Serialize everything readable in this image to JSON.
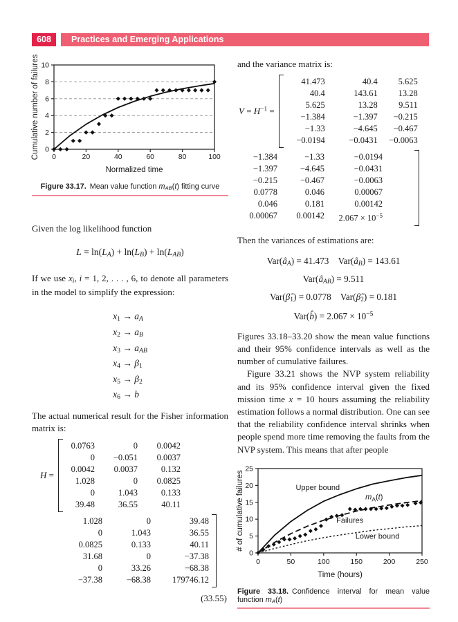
{
  "page": {
    "number": "608",
    "header_title": "Practices and Emerging Applications"
  },
  "colors": {
    "header_box": "#e32249",
    "header_bar": "#ee5f72",
    "caption_rule": "#f08795"
  },
  "left_column": {
    "para_log_likelihood": "Given the log likelihood function",
    "eq_likelihood": "$L$ = ln($L$_{$A$}) + ln($L$_{$B$}) + ln($L$_{$AB$})",
    "para_if_we_use": "If we use $x$_{$i$}, $i$ = 1, 2, . . . , 6, to denote all parameters in the model to simplify the expression:",
    "mappings": [
      "$x$_{1} → $a$_{$A$}",
      "$x$_{2} → $a$_{$B$}",
      "$x$_{3} → $a$_{$AB$}",
      "$x$_{4} → $β$_{1}",
      "$x$_{5} → $β$_{2}",
      "$x$_{6} → $b$"
    ],
    "para_fisher": "The actual numerical result for the Fisher information matrix is:",
    "h_matrix": {
      "label": "$H$ =",
      "block1": [
        [
          "0.0763",
          "0",
          "0.0042"
        ],
        [
          "0",
          "−0.051",
          "0.0037"
        ],
        [
          "0.0042",
          "0.0037",
          "0.132"
        ],
        [
          "1.028",
          "0",
          "0.0825"
        ],
        [
          "0",
          "1.043",
          "0.133"
        ],
        [
          "39.48",
          "36.55",
          "40.11"
        ]
      ],
      "block2": [
        [
          "1.028",
          "0",
          "39.48"
        ],
        [
          "0",
          "1.043",
          "36.55"
        ],
        [
          "0.0825",
          "0.133",
          "40.11"
        ],
        [
          "31.68",
          "0",
          "−37.38"
        ],
        [
          "0",
          "33.26",
          "−68.38"
        ],
        [
          "−37.38",
          "−68.38",
          "179746.12"
        ]
      ],
      "equation_number": "(33.55)"
    }
  },
  "right_column": {
    "para_variance": "and the variance matrix is:",
    "v_matrix": {
      "label": "$V$ = $H$^{−1} =",
      "block1": [
        [
          "41.473",
          "40.4",
          "5.625"
        ],
        [
          "40.4",
          "143.61",
          "13.28"
        ],
        [
          "5.625",
          "13.28",
          "9.511"
        ],
        [
          "−1.384",
          "−1.397",
          "−0.215"
        ],
        [
          "−1.33",
          "−4.645",
          "−0.467"
        ],
        [
          "−0.0194",
          "−0.0431",
          "−0.0063"
        ]
      ],
      "block2": [
        [
          "−1.384",
          "−1.33",
          "−0.0194"
        ],
        [
          "−1.397",
          "−4.645",
          "−0.0431"
        ],
        [
          "−0.215",
          "−0.467",
          "−0.0063"
        ],
        [
          "0.0778",
          "0.046",
          "0.00067"
        ],
        [
          "0.046",
          "0.181",
          "0.00142"
        ],
        [
          "0.00067",
          "0.00142",
          "2.067 × 10^{−5}"
        ]
      ]
    },
    "para_then": "Then the variances of estimations are:",
    "variance_lines": [
      "Var($â$_{$A$}) = 41.473 Var($â$_{$B$}) = 143.61",
      "Var($â$_{$AB$}) = 9.511",
      "Var($β̂$_{1}) = 0.0778 Var($β̂$_{2}) = 0.181",
      "Var($b̂$) = 2.067 × 10^{−5}"
    ],
    "para_figures": "Figures 33.18–33.20 show the mean value functions and their 95% confidence intervals as well as the number of cumulative failures.",
    "para_figure_3321": "Figure 33.21 shows the NVP system reliability and its 95% confidence interval given the fixed mission time $x$ = 10 hours assuming the reliability estimation follows a normal distribution. One can see that the reliability confidence interval shrinks when people spend more time removing the faults from the NVP system. This means that after people"
  },
  "figure_33_17": {
    "caption_label": "Figure 33.17.",
    "caption_text": "Mean value function $m$_{$AB$}($t$) fitting curve"
  },
  "figure_33_18": {
    "caption_label": "Figure 33.18.",
    "caption_text": "Confidence interval for mean value function $m$_{$A$}($t$)"
  },
  "chart_data": [
    {
      "id": "figure-33-17",
      "type": "scatter",
      "title": "",
      "xlabel": "Normalized time",
      "ylabel": "Cumulative number of failures",
      "xlim": [
        0,
        100
      ],
      "ylim": [
        0,
        10
      ],
      "xticks": [
        0,
        20,
        40,
        60,
        80,
        100
      ],
      "yticks": [
        0,
        2,
        4,
        6,
        8,
        10
      ],
      "grid_y": [
        2,
        4,
        6,
        8
      ],
      "legend": "none",
      "series": [
        {
          "name": "observed cumulative failures",
          "type": "scatter",
          "marker": "diamond",
          "points": [
            [
              0,
              0
            ],
            [
              4,
              0
            ],
            [
              8,
              0
            ],
            [
              12,
              1
            ],
            [
              16,
              1
            ],
            [
              20,
              2
            ],
            [
              24,
              2
            ],
            [
              28,
              3
            ],
            [
              32,
              4
            ],
            [
              36,
              4
            ],
            [
              40,
              6
            ],
            [
              44,
              6
            ],
            [
              48,
              6
            ],
            [
              52,
              6
            ],
            [
              56,
              6
            ],
            [
              60,
              6
            ],
            [
              64,
              7
            ],
            [
              68,
              7
            ],
            [
              72,
              7
            ],
            [
              76,
              7
            ],
            [
              80,
              7
            ],
            [
              84,
              7
            ],
            [
              88,
              7
            ],
            [
              92,
              7
            ],
            [
              96,
              7
            ],
            [
              100,
              8
            ]
          ]
        },
        {
          "name": "fitted mean value function mAB(t)",
          "type": "line",
          "style": "solid",
          "points": [
            [
              0,
              0
            ],
            [
              10,
              1.63
            ],
            [
              20,
              2.97
            ],
            [
              30,
              4.06
            ],
            [
              40,
              4.96
            ],
            [
              50,
              5.69
            ],
            [
              60,
              6.29
            ],
            [
              70,
              6.78
            ],
            [
              80,
              7.18
            ],
            [
              90,
              7.51
            ],
            [
              100,
              7.8
            ]
          ]
        }
      ]
    },
    {
      "id": "figure-33-18",
      "type": "line",
      "title": "",
      "xlabel": "Time (hours)",
      "ylabel": "# of cumulative failures",
      "xlim": [
        0,
        250
      ],
      "ylim": [
        0,
        25
      ],
      "xticks": [
        0,
        50,
        100,
        150,
        200,
        250
      ],
      "yticks": [
        0,
        5,
        10,
        15,
        20,
        25
      ],
      "legend": "inline-annotations",
      "series": [
        {
          "name": "Upper bound",
          "type": "line",
          "style": "solid",
          "points": [
            [
              0,
              0
            ],
            [
              25,
              5.2
            ],
            [
              50,
              9.3
            ],
            [
              75,
              12.6
            ],
            [
              100,
              15.3
            ],
            [
              125,
              17.3
            ],
            [
              150,
              19.0
            ],
            [
              175,
              20.4
            ],
            [
              200,
              21.4
            ],
            [
              225,
              22.3
            ],
            [
              250,
              23.0
            ]
          ]
        },
        {
          "name": "mA(t)",
          "type": "line",
          "style": "dashed",
          "dash": "8,4.5",
          "points": [
            [
              0,
              0
            ],
            [
              25,
              3.1
            ],
            [
              50,
              5.7
            ],
            [
              75,
              7.9
            ],
            [
              100,
              9.7
            ],
            [
              125,
              11.1
            ],
            [
              150,
              12.4
            ],
            [
              175,
              13.4
            ],
            [
              200,
              14.2
            ],
            [
              225,
              14.9
            ],
            [
              250,
              15.5
            ]
          ]
        },
        {
          "name": "Lower bound",
          "type": "line",
          "style": "dotted",
          "dash": "2.5,2.8",
          "width": 1.4,
          "points": [
            [
              0,
              0
            ],
            [
              25,
              1.3
            ],
            [
              50,
              2.5
            ],
            [
              75,
              3.6
            ],
            [
              100,
              4.5
            ],
            [
              125,
              5.3
            ],
            [
              150,
              6.0
            ],
            [
              175,
              6.7
            ],
            [
              200,
              7.2
            ],
            [
              225,
              7.7
            ],
            [
              250,
              8.1
            ]
          ]
        },
        {
          "name": "Failures",
          "type": "scatter",
          "marker": "diamond",
          "size": 3.0,
          "points": [
            [
              0,
              0
            ],
            [
              8,
              1
            ],
            [
              16,
              2
            ],
            [
              24,
              2.5
            ],
            [
              32,
              3.2
            ],
            [
              40,
              4
            ],
            [
              48,
              4
            ],
            [
              56,
              4.3
            ],
            [
              64,
              5
            ],
            [
              72,
              5.4
            ],
            [
              80,
              6.5
            ],
            [
              88,
              7
            ],
            [
              96,
              8
            ],
            [
              104,
              9.9
            ],
            [
              112,
              10.7
            ],
            [
              120,
              11
            ],
            [
              128,
              11.2
            ],
            [
              140,
              13
            ],
            [
              148,
              12.8
            ],
            [
              156,
              13
            ],
            [
              164,
              13
            ],
            [
              172,
              13
            ],
            [
              180,
              13
            ],
            [
              188,
              13.2
            ],
            [
              196,
              13.3
            ],
            [
              204,
              13.7
            ],
            [
              212,
              14
            ],
            [
              220,
              14
            ],
            [
              228,
              14.2
            ],
            [
              240,
              14.7
            ],
            [
              248,
              14.9
            ]
          ]
        }
      ],
      "annotations": [
        {
          "x": 91,
          "y": 18.6,
          "parts": [
            {
              "t": "Upper bound"
            }
          ]
        },
        {
          "x": 177,
          "y": 15.9,
          "parts": [
            {
              "t": "m",
              "i": true
            },
            {
              "t": "A",
              "dy": 3,
              "size": 8.5
            },
            {
              "t": "(",
              "dy": -3
            },
            {
              "t": "t",
              "i": true
            },
            {
              "t": ")"
            }
          ]
        },
        {
          "x": 140,
          "y": 8.9,
          "parts": [
            {
              "t": "Failures"
            }
          ]
        },
        {
          "x": 182,
          "y": 4.2,
          "parts": [
            {
              "t": "Lower bound"
            }
          ]
        }
      ]
    }
  ]
}
